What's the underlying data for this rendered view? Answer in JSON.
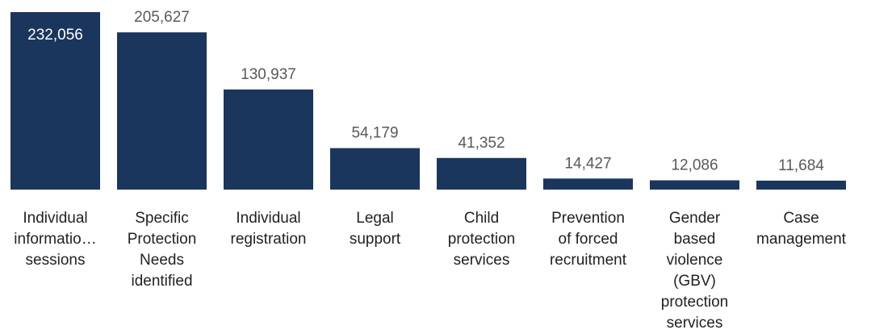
{
  "chart_data": {
    "type": "bar",
    "categories": [
      "Individual informatio… sessions",
      "Specific Protection Needs identified",
      "Individual registration",
      "Legal support",
      "Child protection services",
      "Prevention of forced recruitment",
      "Gender based violence (GBV) protection services",
      "Case management"
    ],
    "category_lines": [
      [
        "Individual",
        "informatio…",
        "sessions"
      ],
      [
        "Specific",
        "Protection",
        "Needs",
        "identified"
      ],
      [
        "Individual",
        "registration"
      ],
      [
        "Legal",
        "support"
      ],
      [
        "Child",
        "protection",
        "services"
      ],
      [
        "Prevention",
        "of forced",
        "recruitment"
      ],
      [
        "Gender",
        "based",
        "violence",
        "(GBV)",
        "protection",
        "services"
      ],
      [
        "Case",
        "management"
      ]
    ],
    "values": [
      232056,
      205627,
      130937,
      54179,
      41352,
      14427,
      12086,
      11684
    ],
    "value_labels": [
      "232,056",
      "205,627",
      "130,937",
      "54,179",
      "41,352",
      "14,427",
      "12,086",
      "11,684"
    ],
    "title": "",
    "xlabel": "",
    "ylabel": "",
    "ylim": [
      0,
      232056
    ],
    "grid": false,
    "legend": "none",
    "colors": {
      "bar": "#1b365d",
      "label_outside": "#595959",
      "label_inside": "#ffffff",
      "category_text": "#222222"
    }
  }
}
